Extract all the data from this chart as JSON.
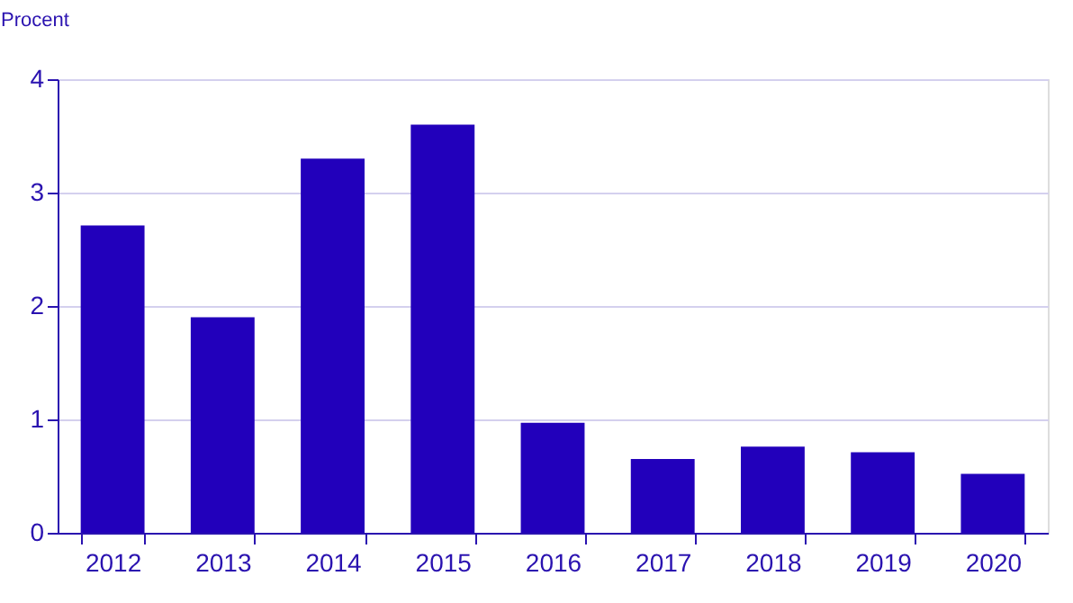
{
  "chart_data": {
    "type": "bar",
    "ylabel": "Procent",
    "categories": [
      "2012",
      "2013",
      "2014",
      "2015",
      "2016",
      "2017",
      "2018",
      "2019",
      "2020"
    ],
    "values": [
      2.71,
      1.9,
      3.3,
      3.6,
      0.97,
      0.65,
      0.76,
      0.71,
      0.52
    ],
    "color": "#2200bb",
    "ylim": [
      0,
      4
    ],
    "yticks": [
      0,
      1,
      2,
      3,
      4
    ],
    "grid": "y"
  }
}
